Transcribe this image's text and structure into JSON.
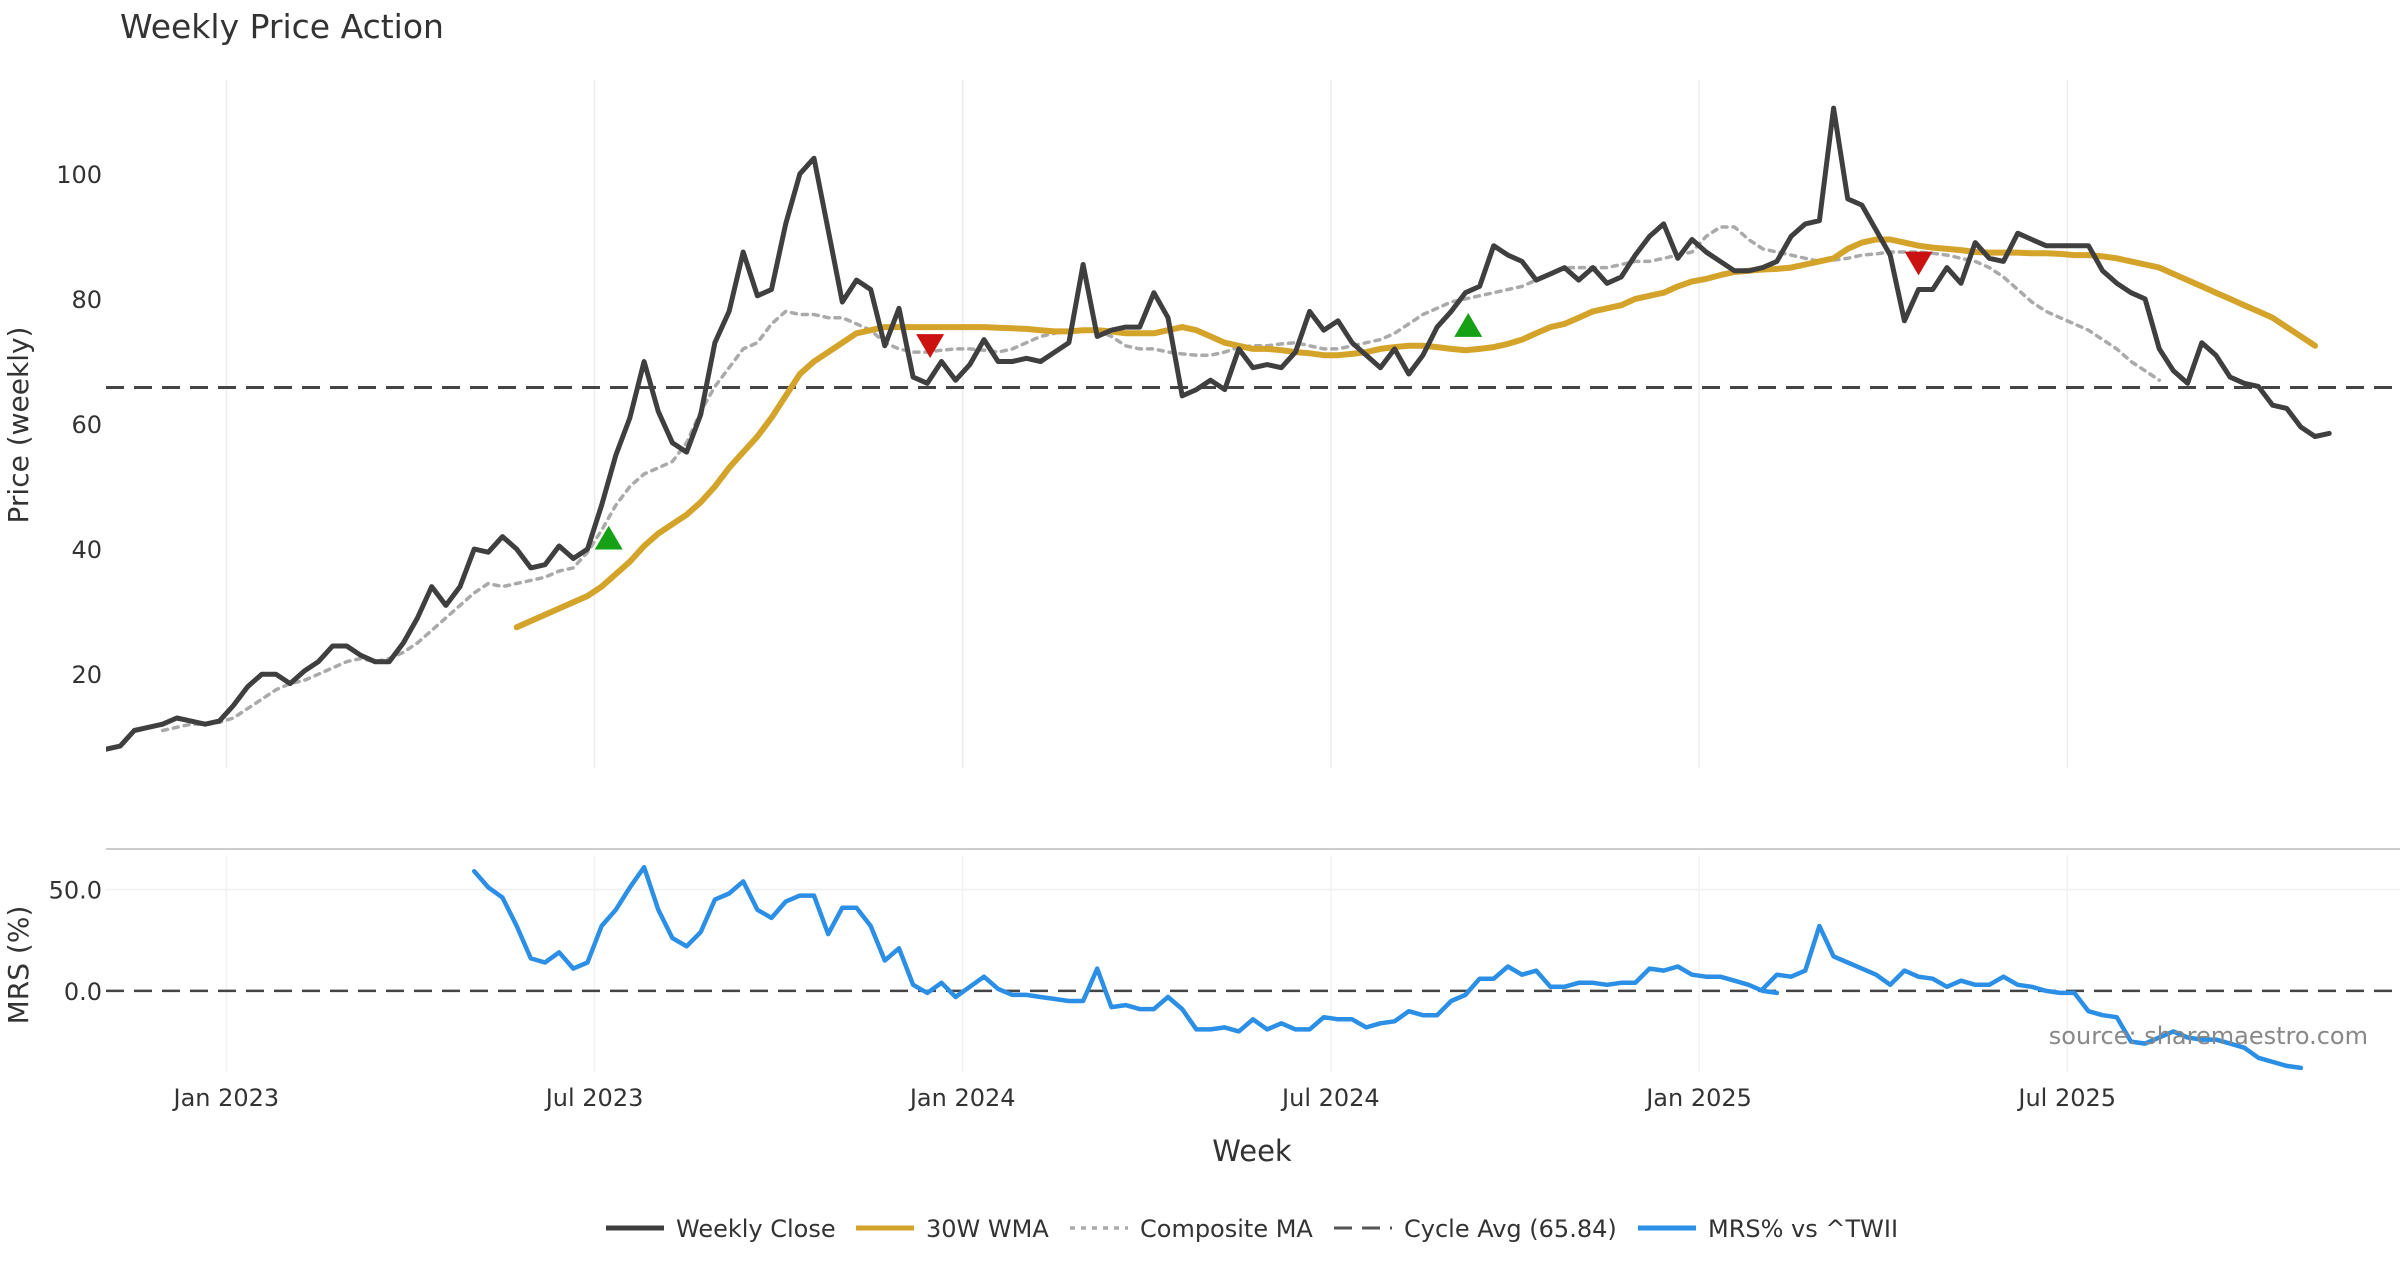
{
  "chart_data": [
    {
      "type": "line",
      "title": "Weekly Price Action",
      "xlabel": "Week",
      "ylabel": "Price (weekly)",
      "ylim": [
        5,
        115
      ],
      "yticks": [
        20,
        40,
        60,
        80,
        100
      ],
      "xlim": [
        0,
        162
      ],
      "xticks": [
        {
          "x": 8.5,
          "label": "Jan 2023"
        },
        {
          "x": 34.5,
          "label": "Jul 2023"
        },
        {
          "x": 60.5,
          "label": "Jan 2024"
        },
        {
          "x": 86.5,
          "label": "Jul 2024"
        },
        {
          "x": 112.5,
          "label": "Jan 2025"
        },
        {
          "x": 138.5,
          "label": "Jul 2025"
        }
      ],
      "grid": "vertical",
      "reference_line": {
        "name": "Cycle Avg (65.84)",
        "value": 65.84
      },
      "series": [
        {
          "name": "Weekly Close",
          "color": "#3f3f3f",
          "x_start": 0,
          "values": [
            8,
            8.5,
            11,
            11.5,
            12,
            13,
            12.5,
            12,
            12.5,
            15,
            18,
            20,
            20,
            18.5,
            20.5,
            22,
            24.5,
            24.5,
            23,
            22,
            22,
            25,
            29,
            34,
            31,
            34,
            40,
            39.5,
            42,
            40,
            37,
            37.5,
            40.5,
            38.5,
            40,
            47,
            55,
            61,
            70,
            62,
            57,
            55.5,
            61.5,
            73,
            78,
            87.5,
            80.5,
            81.5,
            92,
            100,
            102.5,
            91,
            79.5,
            83,
            81.5,
            72.5,
            78.5,
            67.5,
            66.5,
            70,
            67,
            69.5,
            73.5,
            70,
            70,
            70.5,
            70,
            71.5,
            73,
            85.5,
            74,
            75,
            75.5,
            75.5,
            81,
            77,
            64.5,
            65.5,
            67,
            65.5,
            72,
            69,
            69.5,
            69,
            71.5,
            78,
            75,
            76.5,
            73,
            71,
            69,
            72,
            68,
            71,
            75.5,
            78,
            81,
            82,
            88.5,
            87,
            86,
            83,
            84,
            85,
            83,
            85,
            82.5,
            83.5,
            87,
            90,
            92,
            86.5,
            89.5,
            87.5,
            86,
            84.5,
            84.5,
            85,
            86,
            90,
            92,
            92.5,
            110.5,
            96,
            95,
            91,
            87,
            76.5,
            81.5,
            81.5,
            85,
            82.5,
            89,
            86.5,
            86,
            90.5,
            89.5,
            88.5,
            88.5,
            88.5,
            88.5,
            84.5,
            82.5,
            81,
            80,
            72,
            68.5,
            66.5,
            73,
            71,
            67.5,
            66.5,
            66,
            63,
            62.5,
            59.5,
            58,
            58.5
          ]
        },
        {
          "name": "30W WMA",
          "color": "#d4a32a",
          "x_start": 29,
          "values": [
            27.5,
            28.5,
            29.5,
            30.5,
            31.5,
            32.5,
            34,
            36,
            38,
            40.5,
            42.5,
            44,
            45.5,
            47.5,
            50,
            53,
            55.5,
            58,
            61,
            64.5,
            68,
            70,
            71.5,
            73,
            74.5,
            75,
            75.5,
            75.5,
            75.5,
            75.5,
            75.5,
            75.5,
            75.5,
            75.5,
            75.4,
            75.3,
            75.2,
            75,
            74.8,
            74.8,
            75,
            75,
            74.8,
            74.5,
            74.5,
            74.5,
            75,
            75.5,
            75,
            74,
            73,
            72.5,
            72,
            72,
            71.8,
            71.5,
            71.3,
            71,
            71,
            71.2,
            71.5,
            72,
            72.3,
            72.5,
            72.5,
            72.3,
            72,
            71.8,
            72,
            72.3,
            72.8,
            73.5,
            74.5,
            75.5,
            76,
            77,
            78,
            78.5,
            79,
            80,
            80.5,
            81,
            82,
            82.8,
            83.2,
            83.8,
            84.3,
            84.5,
            84.7,
            84.8,
            85,
            85.5,
            86,
            86.5,
            88,
            89,
            89.5,
            89.5,
            89,
            88.5,
            88.2,
            88,
            87.8,
            87.5,
            87.4,
            87.4,
            87.4,
            87.3,
            87.3,
            87.2,
            87,
            87,
            86.8,
            86.5,
            86,
            85.5,
            85,
            84,
            83,
            82,
            81,
            80,
            79,
            78,
            77,
            75.5,
            74,
            72.5
          ]
        },
        {
          "name": "Composite MA",
          "color": "#aaaaaa",
          "x_start": 4,
          "values": [
            11,
            11.5,
            12,
            12,
            12.3,
            13,
            14.5,
            16,
            17.5,
            18.5,
            19,
            20,
            21,
            22,
            22.5,
            22,
            22.5,
            23.5,
            25,
            27,
            29,
            31,
            33,
            34.5,
            34,
            34.5,
            35,
            35.5,
            36.5,
            37,
            39.5,
            43,
            47,
            50,
            52,
            53,
            54,
            57,
            62,
            66,
            69,
            72,
            73,
            76,
            78,
            77.5,
            77.5,
            77,
            77,
            76,
            75,
            73,
            72,
            71.5,
            71.5,
            71.8,
            72,
            72,
            71.8,
            71.5,
            72,
            73,
            74,
            74.5,
            75,
            75,
            75,
            74,
            72.5,
            72,
            72,
            71.5,
            71.2,
            71,
            71,
            71.5,
            72.3,
            72.5,
            72.5,
            72.8,
            73,
            72.5,
            72,
            72,
            72.5,
            73,
            73.5,
            74.5,
            76,
            77.5,
            78.5,
            79.5,
            80,
            80.5,
            81,
            81.5,
            82,
            83,
            84,
            85,
            85,
            85,
            85,
            85.5,
            86,
            86,
            86.5,
            87,
            87.5,
            90,
            91.5,
            91.5,
            89.5,
            88,
            87.5,
            87,
            86.5,
            86,
            86.2,
            86.5,
            87,
            87.2,
            87.5,
            87.5,
            87.5,
            87.3,
            87,
            86.5,
            86,
            85,
            83.5,
            81.5,
            79.5,
            78,
            77,
            76,
            75,
            73.5,
            72,
            70,
            68.5,
            67
          ]
        }
      ],
      "markers": [
        {
          "type": "buy",
          "x": 35.5,
          "y": 41.5,
          "color": "#16a016"
        },
        {
          "type": "sell",
          "x": 58.2,
          "y": 72.8,
          "color": "#cc1111"
        },
        {
          "type": "buy",
          "x": 96.2,
          "y": 75.5,
          "color": "#16a016"
        },
        {
          "type": "sell",
          "x": 128,
          "y": 86,
          "color": "#cc1111"
        }
      ]
    },
    {
      "type": "line",
      "xlabel": "Week",
      "ylabel": "MRS (%)",
      "ylim": [
        -40,
        67
      ],
      "yticks": [
        {
          "value": 0,
          "label": "0.0"
        },
        {
          "value": 50,
          "label": "50.0"
        }
      ],
      "reference_line": {
        "value": 0
      },
      "series": [
        {
          "name": "MRS% vs ^TWII",
          "color": "#2b8fe6",
          "segments": [
            {
              "x_start": 26,
              "values": [
                59,
                51,
                46,
                32,
                16,
                14,
                19,
                11,
                14,
                32,
                40,
                51,
                61,
                40,
                26,
                22,
                29,
                45,
                48,
                54,
                40,
                36,
                44,
                47,
                47,
                28,
                41,
                41,
                32,
                15,
                21,
                3,
                -1,
                4,
                -3,
                2,
                7,
                1,
                -2,
                -2,
                -3,
                -4,
                -5,
                -5,
                11,
                -8,
                -7,
                -9,
                -9,
                -3,
                -9,
                -19,
                -19,
                -18,
                -20,
                -14,
                -19,
                -16,
                -19,
                -19,
                -13,
                -14,
                -14,
                -18,
                -16,
                -15,
                -10,
                -12,
                -12,
                -5,
                -2,
                6,
                6,
                12,
                8,
                10,
                2,
                2,
                4,
                4,
                3,
                4,
                4,
                11,
                10,
                12,
                8,
                7,
                7,
                5,
                3,
                0,
                -1
              ]
            },
            {
              "x_start": 117,
              "values": [
                1,
                8,
                7,
                10,
                32,
                17,
                14,
                11,
                8,
                3,
                10,
                7,
                6,
                2,
                5,
                3,
                3,
                7,
                3,
                2,
                0,
                -1,
                -1,
                -10,
                -12,
                -13,
                -25,
                -26,
                -23,
                -20,
                -23,
                -24,
                -24,
                -26,
                -28,
                -33,
                -35,
                -37,
                -38
              ]
            }
          ]
        }
      ]
    }
  ],
  "legend": [
    {
      "label": "Weekly Close",
      "style": "solid",
      "color": "#3f3f3f"
    },
    {
      "label": "30W WMA",
      "style": "solid",
      "color": "#d4a32a"
    },
    {
      "label": "Composite MA",
      "style": "dotted",
      "color": "#aaaaaa"
    },
    {
      "label": "Cycle Avg (65.84)",
      "style": "dashed",
      "color": "#555555"
    },
    {
      "label": "MRS% vs ^TWII",
      "style": "solid",
      "color": "#2b8fe6"
    }
  ],
  "watermark": "source: sharemaestro.com"
}
